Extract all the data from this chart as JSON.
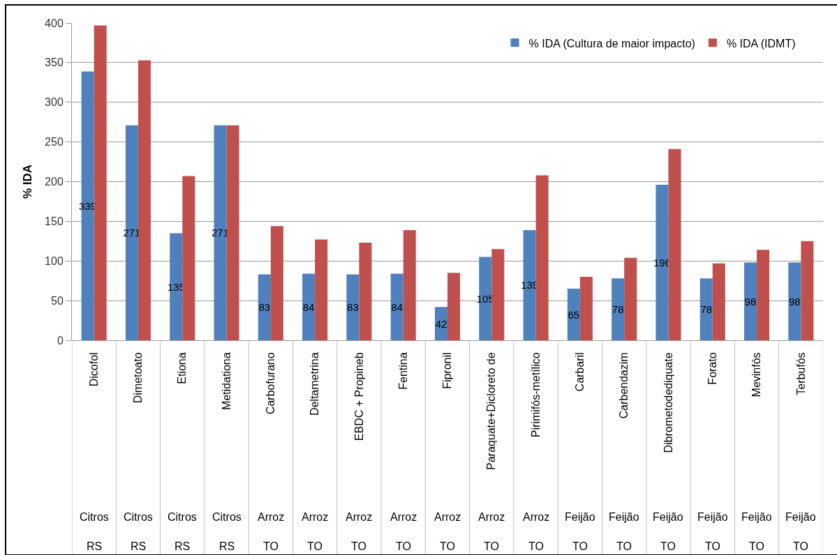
{
  "chart_data": {
    "type": "bar",
    "ylabel": "% IDA",
    "ylim": [
      0,
      400
    ],
    "yticks": [
      0,
      50,
      100,
      150,
      200,
      250,
      300,
      350,
      400
    ],
    "grid": "y",
    "legend": "top right",
    "categories": [
      "Dicofol\nCitros\nRS",
      "Dimetoato\nCitros\nRS",
      "Etiona\nCitros\nRS",
      "Metidationa\nCitros\nRS",
      "Carbofurano\nArroz\nTO",
      "Deltametrina\nArroz\nTO",
      "EBDC + Propineb\nArroz\nTO",
      "Fentina\nArroz\nTO",
      "Fipronil\nArroz\nTO",
      "Paraquate+Dicloreto de\nArroz\nTO",
      "Pirimifós-metílico\nArroz\nTO",
      "Carbaril\nFeijão\nTO",
      "Carbendazim\nFeijão\nTO",
      "Dibrometodediquate\nFeijão\nTO",
      "Forato\nFeijão\nTO",
      "Mevinfós\nFeijão\nTO",
      "Terbufós\nFeijão\nTO"
    ],
    "series": [
      {
        "name": "% IDA (Cultura de maior impacto)",
        "color": "#4f81bd",
        "values": [
          339,
          271,
          135,
          271,
          83,
          84,
          83,
          84,
          42,
          105,
          139,
          65,
          78,
          196,
          78,
          98,
          98
        ],
        "value_labels": [
          "339",
          "271",
          "135",
          "271",
          "83",
          "84",
          "83",
          "84",
          "42",
          "105",
          "139",
          "65",
          "78",
          "196",
          "78",
          "98",
          "98"
        ]
      },
      {
        "name": "% IDA (IDMT)",
        "color": "#c0504d",
        "values": [
          397,
          353,
          207,
          271,
          144,
          127,
          123,
          139,
          85,
          115,
          208,
          80,
          104,
          241,
          97,
          114,
          125
        ]
      }
    ]
  }
}
